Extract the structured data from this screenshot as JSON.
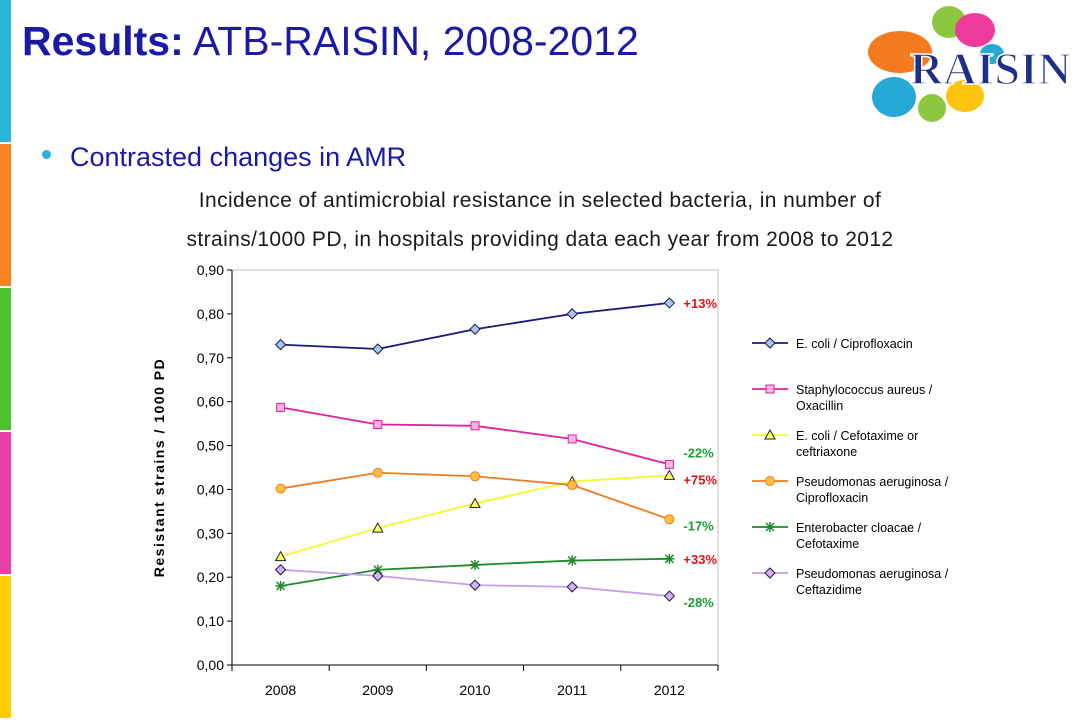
{
  "slide": {
    "title_bold": "Results:",
    "title_rest": " ATB-RAISIN, 2008-2012",
    "bullet": "Contrasted changes in AMR",
    "subtitle_line1": "Incidence of antimicrobial resistance in selected bacteria, in number of",
    "subtitle_line2": "strains/1000 PD, in hospitals providing data each year from 2008 to 2012",
    "logo_text": "RAISIN",
    "side_bar_colors": [
      "#2bb5dc",
      "#f7841e",
      "#4cc22f",
      "#ea3fa6",
      "#ffcc00"
    ]
  },
  "chart_data": {
    "type": "line",
    "ylabel": "Resistant strains / 1000 PD",
    "xlabel": "",
    "categories": [
      "2008",
      "2009",
      "2010",
      "2011",
      "2012"
    ],
    "ylim": [
      0,
      0.9
    ],
    "yticks": [
      "0,00",
      "0,10",
      "0,20",
      "0,30",
      "0,40",
      "0,50",
      "0,60",
      "0,70",
      "0,80",
      "0,90"
    ],
    "grid": false,
    "legend_position": "right",
    "series": [
      {
        "name": "E. coli / Ciprofloxacin",
        "values": [
          0.73,
          0.72,
          0.765,
          0.8,
          0.825
        ],
        "color": "#1a1a7a",
        "marker": "diamond",
        "marker_fill": "#a8c4f0",
        "change_label": "+13%",
        "change_color": "#e0101a"
      },
      {
        "name": "Staphylococcus aureus / Oxacillin",
        "values": [
          0.587,
          0.548,
          0.545,
          0.515,
          0.457
        ],
        "color": "#e0209c",
        "marker": "square",
        "marker_fill": "#f4b8de",
        "change_label": "-22%",
        "change_color": "#18a030"
      },
      {
        "name": "E. coli / Cefotaxime or ceftriaxone",
        "values": [
          0.247,
          0.312,
          0.368,
          0.418,
          0.432
        ],
        "color": "#f6f632",
        "marker": "triangle",
        "marker_fill": "#ffff66",
        "change_label": "+75%",
        "change_color": "#e0101a"
      },
      {
        "name": "Pseudomonas aeruginosa / Ciprofloxacin",
        "values": [
          0.402,
          0.438,
          0.43,
          0.41,
          0.332
        ],
        "color": "#f07a20",
        "marker": "circle",
        "marker_fill": "#ffc040",
        "change_label": "-17%",
        "change_color": "#18a030"
      },
      {
        "name": "Enterobacter cloacae / Cefotaxime",
        "values": [
          0.18,
          0.217,
          0.228,
          0.238,
          0.242
        ],
        "color": "#1e8a2a",
        "marker": "star",
        "marker_fill": "#1e8a2a",
        "change_label": "+33%",
        "change_color": "#e0101a"
      },
      {
        "name": "Pseudomonas aeruginosa / Ceftazidime",
        "values": [
          0.217,
          0.203,
          0.182,
          0.178,
          0.157
        ],
        "color": "#c89ce8",
        "marker": "diamond",
        "marker_fill": "#d8b0f4",
        "change_label": "-28%",
        "change_color": "#18a030"
      }
    ]
  }
}
